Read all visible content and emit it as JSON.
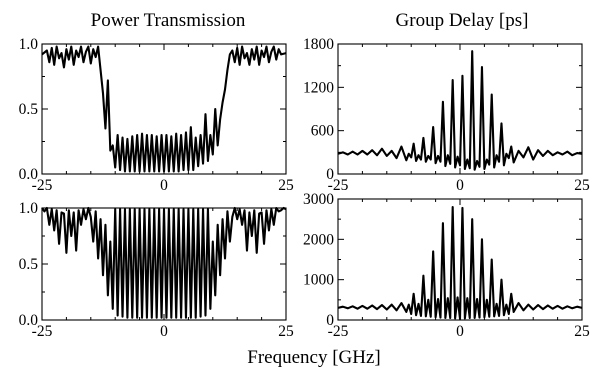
{
  "titles": {
    "left": "Power Transmission",
    "right": "Group Delay [ps]",
    "xlabel": "Frequency [GHz]"
  },
  "chart_data": [
    {
      "id": "tl",
      "type": "line",
      "panel": "top-left",
      "xlim": [
        -25,
        25
      ],
      "ylim": [
        0,
        1
      ],
      "xticks": [
        -25,
        0,
        25
      ],
      "xtick_labels": [
        "-25",
        "0",
        "25"
      ],
      "yticks": [
        0,
        0.5,
        1
      ],
      "ytick_labels": [
        "0.0",
        "0.5",
        "1.0"
      ],
      "grid": false,
      "series": [
        {
          "x": [
            -25,
            -24,
            -23.5,
            -23,
            -22.5,
            -22,
            -21.5,
            -21,
            -20.5,
            -20,
            -19.5,
            -19,
            -18.5,
            -18,
            -17.5,
            -17,
            -16.5,
            -16,
            -15.5,
            -15,
            -14.5,
            -14,
            -13.5,
            -13,
            -12.5,
            -12,
            -11.5,
            -11,
            -10.5,
            -10,
            -9.5,
            -9,
            -8.5,
            -8,
            -7.5,
            -7,
            -6.5,
            -6,
            -5.5,
            -5,
            -4.5,
            -4,
            -3.5,
            -3,
            -2.5,
            -2,
            -1.5,
            -1,
            -0.5,
            0,
            0.5,
            1,
            1.5,
            2,
            2.5,
            3,
            3.5,
            4,
            4.5,
            5,
            5.5,
            6,
            6.5,
            7,
            7.5,
            8,
            8.5,
            9,
            9.5,
            10,
            10.5,
            11,
            11.5,
            12,
            12.5,
            13,
            13.5,
            14,
            14.5,
            15,
            15.5,
            16,
            16.5,
            17,
            17.5,
            18,
            18.5,
            19,
            19.5,
            20,
            20.5,
            21,
            21.5,
            22,
            22.5,
            23,
            23.5,
            24,
            25
          ],
          "y": [
            0.92,
            0.95,
            0.86,
            0.97,
            0.84,
            0.98,
            0.89,
            0.93,
            0.82,
            0.96,
            0.88,
            0.98,
            0.84,
            0.95,
            0.9,
            0.98,
            0.86,
            0.94,
            0.98,
            0.85,
            0.96,
            0.9,
            0.98,
            0.8,
            0.62,
            0.35,
            0.72,
            0.18,
            0.22,
            0.05,
            0.3,
            0.03,
            0.28,
            0.02,
            0.27,
            0.02,
            0.29,
            0.02,
            0.3,
            0.02,
            0.31,
            0.02,
            0.3,
            0.02,
            0.3,
            0.02,
            0.29,
            0.02,
            0.3,
            0.02,
            0.3,
            0.02,
            0.29,
            0.02,
            0.31,
            0.02,
            0.3,
            0.03,
            0.32,
            0.03,
            0.36,
            0.03,
            0.28,
            0.06,
            0.3,
            0.08,
            0.46,
            0.1,
            0.3,
            0.15,
            0.5,
            0.22,
            0.42,
            0.55,
            0.65,
            0.8,
            0.92,
            0.95,
            0.86,
            0.97,
            0.84,
            0.98,
            0.89,
            0.93,
            0.84,
            0.96,
            0.88,
            0.98,
            0.84,
            0.95,
            0.9,
            0.98,
            0.86,
            0.94,
            0.98,
            0.88,
            0.96,
            0.92,
            0.93
          ]
        }
      ]
    },
    {
      "id": "tr",
      "type": "line",
      "panel": "top-right",
      "xlim": [
        -25,
        25
      ],
      "ylim": [
        0,
        1800
      ],
      "xticks": [
        -25,
        0,
        25
      ],
      "xtick_labels": [
        "-25",
        "0",
        "25"
      ],
      "yticks": [
        0,
        600,
        1200,
        1800
      ],
      "ytick_labels": [
        "0",
        "600",
        "1200",
        "1800"
      ],
      "grid": false,
      "series": [
        {
          "x": [
            -25,
            -24,
            -23,
            -22,
            -21,
            -20,
            -19,
            -18,
            -17,
            -16,
            -15,
            -14,
            -13,
            -12,
            -11,
            -10.5,
            -10,
            -9.5,
            -9,
            -8.5,
            -8,
            -7.5,
            -7,
            -6.5,
            -6,
            -5.5,
            -5,
            -4.5,
            -4,
            -3.5,
            -3,
            -2.5,
            -2,
            -1.5,
            -1,
            -0.5,
            0,
            0.5,
            1,
            1.5,
            2,
            2.5,
            3,
            3.5,
            4,
            4.5,
            5,
            5.5,
            6,
            6.5,
            7,
            7.5,
            8,
            8.5,
            9,
            9.5,
            10,
            10.5,
            11,
            12,
            13,
            14,
            15,
            16,
            17,
            18,
            19,
            20,
            21,
            22,
            23,
            24,
            25
          ],
          "y": [
            280,
            300,
            270,
            310,
            270,
            320,
            270,
            330,
            260,
            350,
            250,
            320,
            220,
            380,
            190,
            280,
            230,
            420,
            180,
            260,
            200,
            500,
            170,
            250,
            200,
            650,
            150,
            250,
            170,
            1000,
            110,
            260,
            140,
            1300,
            90,
            240,
            120,
            1360,
            70,
            200,
            80,
            1700,
            60,
            180,
            100,
            1480,
            70,
            200,
            130,
            1100,
            90,
            260,
            170,
            700,
            120,
            280,
            220,
            380,
            160,
            320,
            230,
            370,
            200,
            330,
            250,
            320,
            260,
            300,
            270,
            310,
            260,
            290,
            280
          ]
        }
      ]
    },
    {
      "id": "bl",
      "type": "line",
      "panel": "bottom-left",
      "xlim": [
        -25,
        25
      ],
      "ylim": [
        0,
        1
      ],
      "xticks": [
        -25,
        0,
        25
      ],
      "xtick_labels": [
        "-25",
        "0",
        "25"
      ],
      "yticks": [
        0,
        0.5,
        1
      ],
      "ytick_labels": [
        "0.0",
        "0.5",
        "1.0"
      ],
      "grid": false,
      "series": [
        {
          "x": [
            -25,
            -24.5,
            -24,
            -23.5,
            -23,
            -22.5,
            -22,
            -21.5,
            -21,
            -20.5,
            -20,
            -19.5,
            -19,
            -18.5,
            -18,
            -17.5,
            -17,
            -16.5,
            -16,
            -15.5,
            -15,
            -14.5,
            -14,
            -13.5,
            -13,
            -12.5,
            -12,
            -11.5,
            -11,
            -10.5,
            -10,
            -9.5,
            -9,
            -8.5,
            -8,
            -7.5,
            -7,
            -6.5,
            -6,
            -5.5,
            -5,
            -4.5,
            -4,
            -3.5,
            -3,
            -2.5,
            -2,
            -1.5,
            -1,
            -0.5,
            0,
            0.5,
            1,
            1.5,
            2,
            2.5,
            3,
            3.5,
            4,
            4.5,
            5,
            5.5,
            6,
            6.5,
            7,
            7.5,
            8,
            8.5,
            9,
            9.5,
            10,
            10.5,
            11,
            11.5,
            12,
            12.5,
            13,
            13.5,
            14,
            14.5,
            15,
            15.5,
            16,
            16.5,
            17,
            17.5,
            18,
            18.5,
            19,
            19.5,
            20,
            20.5,
            21,
            21.5,
            22,
            22.5,
            23,
            23.5,
            24,
            24.5,
            25
          ],
          "y": [
            1.0,
            0.97,
            1.0,
            0.85,
            0.99,
            0.8,
            0.98,
            0.68,
            0.96,
            0.95,
            0.6,
            0.98,
            0.75,
            0.96,
            0.62,
            0.98,
            0.85,
            0.99,
            0.9,
            1.0,
            0.92,
            0.7,
            0.97,
            0.55,
            0.9,
            0.4,
            0.85,
            0.22,
            0.7,
            0.1,
            0.99,
            0.04,
            0.99,
            0.03,
            0.99,
            0.02,
            0.99,
            0.02,
            0.99,
            0.02,
            0.99,
            0.02,
            0.99,
            0.02,
            0.99,
            0.02,
            0.99,
            0.02,
            0.99,
            0.02,
            0.99,
            0.02,
            0.99,
            0.02,
            0.99,
            0.02,
            0.99,
            0.02,
            0.99,
            0.02,
            0.99,
            0.02,
            0.99,
            0.02,
            0.99,
            0.03,
            0.99,
            0.04,
            0.99,
            0.1,
            0.7,
            0.22,
            0.85,
            0.4,
            0.9,
            0.55,
            0.97,
            0.7,
            0.92,
            1.0,
            0.9,
            0.99,
            0.85,
            0.98,
            0.62,
            0.96,
            0.75,
            0.98,
            0.6,
            0.95,
            0.96,
            0.68,
            0.98,
            0.8,
            0.99,
            0.85,
            1.0,
            0.97,
            0.98,
            1.0,
            0.99
          ]
        }
      ]
    },
    {
      "id": "br",
      "type": "line",
      "panel": "bottom-right",
      "xlim": [
        -25,
        25
      ],
      "ylim": [
        0,
        3000
      ],
      "xticks": [
        -25,
        0,
        25
      ],
      "xtick_labels": [
        "-25",
        "0",
        "25"
      ],
      "yticks": [
        0,
        1000,
        2000,
        3000
      ],
      "ytick_labels": [
        "0",
        "1000",
        "2000",
        "3000"
      ],
      "grid": false,
      "series": [
        {
          "x": [
            -25,
            -24,
            -23,
            -22,
            -21,
            -20,
            -19,
            -18,
            -17,
            -16,
            -15,
            -14,
            -13,
            -12,
            -11,
            -10.5,
            -10,
            -9.5,
            -9,
            -8.5,
            -8,
            -7.5,
            -7,
            -6.5,
            -6,
            -5.5,
            -5,
            -4.5,
            -4,
            -3.5,
            -3,
            -2.5,
            -2,
            -1.5,
            -1,
            -0.5,
            0,
            0.5,
            1,
            1.5,
            2,
            2.5,
            3,
            3.5,
            4,
            4.5,
            5,
            5.5,
            6,
            6.5,
            7,
            7.5,
            8,
            8.5,
            9,
            9.5,
            10,
            10.5,
            11,
            12,
            13,
            14,
            15,
            16,
            17,
            18,
            19,
            20,
            21,
            22,
            23,
            24,
            25
          ],
          "y": [
            300,
            330,
            290,
            340,
            280,
            350,
            280,
            360,
            270,
            370,
            260,
            380,
            240,
            420,
            200,
            380,
            150,
            650,
            120,
            400,
            100,
            1100,
            90,
            500,
            80,
            1700,
            70,
            520,
            60,
            2400,
            50,
            540,
            50,
            2800,
            40,
            560,
            30,
            2780,
            40,
            540,
            50,
            2500,
            50,
            520,
            60,
            2000,
            70,
            500,
            80,
            1500,
            90,
            400,
            100,
            1000,
            120,
            380,
            150,
            650,
            200,
            420,
            240,
            380,
            260,
            370,
            270,
            360,
            280,
            350,
            280,
            340,
            290,
            330,
            300
          ]
        }
      ]
    }
  ]
}
